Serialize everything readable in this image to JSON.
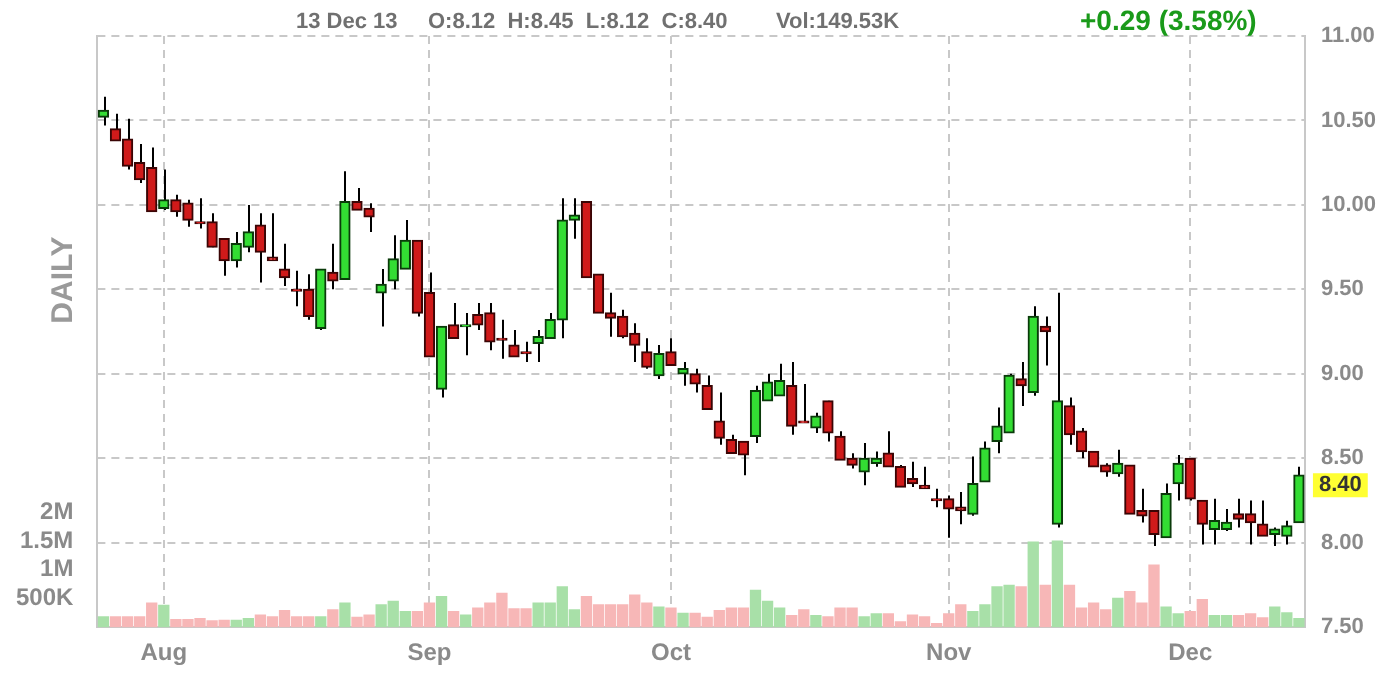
{
  "chart_data": {
    "type": "candlestick",
    "categories": [
      null,
      null,
      null,
      null,
      null,
      "Aug",
      null,
      null,
      null,
      null,
      null,
      null,
      null,
      null,
      null,
      null,
      null,
      null,
      null,
      null,
      null,
      null,
      null,
      null,
      null,
      null,
      null,
      "Sep",
      null,
      null,
      null,
      null,
      null,
      null,
      null,
      null,
      null,
      null,
      null,
      null,
      null,
      null,
      null,
      null,
      null,
      null,
      null,
      "Oct",
      null,
      null,
      null,
      null,
      null,
      null,
      null,
      null,
      null,
      null,
      null,
      null,
      null,
      null,
      null,
      null,
      null,
      null,
      null,
      null,
      null,
      null,
      "Nov",
      null,
      null,
      null,
      null,
      null,
      null,
      null,
      null,
      null,
      null,
      null,
      null,
      null,
      null,
      null,
      null,
      null,
      null,
      null,
      "Dec",
      null,
      null,
      null,
      null,
      null,
      null,
      null,
      null,
      null
    ],
    "ohlc": [
      [
        10.52,
        10.64,
        10.47,
        10.56
      ],
      [
        10.45,
        10.54,
        10.38,
        10.38
      ],
      [
        10.39,
        10.51,
        10.21,
        10.23
      ],
      [
        10.25,
        10.36,
        10.13,
        10.15
      ],
      [
        10.22,
        10.34,
        9.96,
        9.96
      ],
      [
        9.98,
        10.21,
        9.97,
        10.03
      ],
      [
        10.03,
        10.06,
        9.93,
        9.96
      ],
      [
        10.01,
        10.03,
        9.87,
        9.91
      ],
      [
        9.9,
        10.04,
        9.86,
        9.89
      ],
      [
        9.9,
        9.95,
        9.75,
        9.75
      ],
      [
        9.8,
        9.8,
        9.58,
        9.67
      ],
      [
        9.67,
        9.84,
        9.63,
        9.77
      ],
      [
        9.75,
        10.0,
        9.72,
        9.84
      ],
      [
        9.88,
        9.95,
        9.54,
        9.72
      ],
      [
        9.69,
        9.95,
        9.67,
        9.67
      ],
      [
        9.62,
        9.77,
        9.52,
        9.57
      ],
      [
        9.5,
        9.61,
        9.4,
        9.49
      ],
      [
        9.5,
        9.59,
        9.32,
        9.34
      ],
      [
        9.27,
        9.62,
        9.26,
        9.62
      ],
      [
        9.6,
        9.77,
        9.5,
        9.55
      ],
      [
        9.56,
        10.2,
        9.56,
        10.02
      ],
      [
        10.02,
        10.1,
        9.97,
        9.97
      ],
      [
        9.98,
        10.01,
        9.84,
        9.93
      ],
      [
        9.48,
        9.62,
        9.28,
        9.53
      ],
      [
        9.55,
        9.82,
        9.5,
        9.68
      ],
      [
        9.62,
        9.91,
        9.62,
        9.79
      ],
      [
        9.79,
        9.79,
        9.34,
        9.36
      ],
      [
        9.48,
        9.6,
        9.1,
        9.1
      ],
      [
        8.91,
        9.28,
        8.86,
        9.28
      ],
      [
        9.29,
        9.42,
        9.21,
        9.21
      ],
      [
        9.28,
        9.36,
        9.11,
        9.29
      ],
      [
        9.35,
        9.42,
        9.26,
        9.29
      ],
      [
        9.36,
        9.42,
        9.14,
        9.19
      ],
      [
        9.21,
        9.32,
        9.09,
        9.2
      ],
      [
        9.17,
        9.26,
        9.1,
        9.1
      ],
      [
        9.13,
        9.19,
        9.07,
        9.12
      ],
      [
        9.18,
        9.26,
        9.07,
        9.22
      ],
      [
        9.21,
        9.36,
        9.21,
        9.32
      ],
      [
        9.32,
        10.04,
        9.21,
        9.91
      ],
      [
        9.91,
        10.04,
        9.8,
        9.94
      ],
      [
        10.02,
        10.02,
        9.57,
        9.57
      ],
      [
        9.59,
        9.59,
        9.36,
        9.36
      ],
      [
        9.36,
        9.48,
        9.22,
        9.33
      ],
      [
        9.34,
        9.38,
        9.21,
        9.22
      ],
      [
        9.24,
        9.3,
        9.07,
        9.17
      ],
      [
        9.13,
        9.21,
        9.03,
        9.04
      ],
      [
        8.99,
        9.17,
        8.97,
        9.12
      ],
      [
        9.13,
        9.21,
        9.05,
        9.05
      ],
      [
        9.0,
        9.07,
        8.93,
        9.03
      ],
      [
        9.0,
        9.03,
        8.89,
        8.94
      ],
      [
        8.93,
        8.99,
        8.79,
        8.79
      ],
      [
        8.72,
        8.89,
        8.58,
        8.62
      ],
      [
        8.61,
        8.64,
        8.53,
        8.53
      ],
      [
        8.6,
        8.6,
        8.4,
        8.52
      ],
      [
        8.63,
        8.93,
        8.59,
        8.9
      ],
      [
        8.84,
        9.0,
        8.84,
        8.95
      ],
      [
        8.87,
        9.06,
        8.87,
        8.96
      ],
      [
        8.93,
        9.07,
        8.64,
        8.69
      ],
      [
        8.72,
        8.94,
        8.71,
        8.71
      ],
      [
        8.68,
        8.77,
        8.65,
        8.75
      ],
      [
        8.84,
        8.84,
        8.6,
        8.65
      ],
      [
        8.63,
        8.66,
        8.49,
        8.49
      ],
      [
        8.5,
        8.53,
        8.44,
        8.46
      ],
      [
        8.42,
        8.59,
        8.34,
        8.5
      ],
      [
        8.47,
        8.54,
        8.45,
        8.5
      ],
      [
        8.53,
        8.66,
        8.45,
        8.45
      ],
      [
        8.45,
        8.46,
        8.33,
        8.33
      ],
      [
        8.38,
        8.48,
        8.33,
        8.35
      ],
      [
        8.34,
        8.45,
        8.32,
        8.32
      ],
      [
        8.26,
        8.32,
        8.21,
        8.25
      ],
      [
        8.26,
        8.28,
        8.03,
        8.2
      ],
      [
        8.21,
        8.3,
        8.11,
        8.19
      ],
      [
        8.17,
        8.51,
        8.16,
        8.35
      ],
      [
        8.36,
        8.6,
        8.36,
        8.56
      ],
      [
        8.6,
        8.8,
        8.53,
        8.69
      ],
      [
        8.65,
        9.0,
        8.65,
        8.99
      ],
      [
        8.97,
        9.07,
        8.81,
        8.93
      ],
      [
        8.89,
        9.4,
        8.87,
        9.34
      ],
      [
        9.28,
        9.34,
        9.05,
        9.25
      ],
      [
        8.11,
        9.48,
        8.09,
        8.84
      ],
      [
        8.81,
        8.86,
        8.58,
        8.64
      ],
      [
        8.66,
        8.68,
        8.5,
        8.54
      ],
      [
        8.54,
        8.54,
        8.45,
        8.45
      ],
      [
        8.46,
        8.47,
        8.39,
        8.42
      ],
      [
        8.41,
        8.55,
        8.39,
        8.47
      ],
      [
        8.46,
        8.46,
        8.17,
        8.17
      ],
      [
        8.19,
        8.32,
        8.12,
        8.16
      ],
      [
        8.19,
        8.19,
        7.98,
        8.05
      ],
      [
        8.03,
        8.35,
        8.03,
        8.29
      ],
      [
        8.35,
        8.52,
        8.25,
        8.47
      ],
      [
        8.5,
        8.5,
        8.25,
        8.26
      ],
      [
        8.25,
        8.25,
        7.99,
        8.11
      ],
      [
        8.08,
        8.26,
        7.99,
        8.13
      ],
      [
        8.08,
        8.2,
        8.07,
        8.12
      ],
      [
        8.17,
        8.26,
        8.09,
        8.14
      ],
      [
        8.17,
        8.25,
        7.99,
        8.12
      ],
      [
        8.11,
        8.25,
        8.04,
        8.04
      ],
      [
        8.05,
        8.09,
        7.98,
        8.08
      ],
      [
        8.04,
        8.13,
        7.99,
        8.1
      ],
      [
        8.12,
        8.45,
        8.12,
        8.4
      ]
    ],
    "series": [
      {
        "type": "bar",
        "axis": "y2",
        "values": [
          180000,
          180000,
          180000,
          180000,
          420000,
          380000,
          130000,
          130000,
          150000,
          110000,
          120000,
          120000,
          150000,
          210000,
          180000,
          290000,
          180000,
          180000,
          180000,
          300000,
          420000,
          170000,
          210000,
          390000,
          450000,
          270000,
          270000,
          420000,
          530000,
          270000,
          210000,
          330000,
          420000,
          590000,
          320000,
          320000,
          420000,
          420000,
          700000,
          300000,
          530000,
          390000,
          390000,
          390000,
          560000,
          420000,
          350000,
          330000,
          240000,
          240000,
          170000,
          290000,
          330000,
          330000,
          640000,
          450000,
          330000,
          200000,
          300000,
          200000,
          180000,
          330000,
          330000,
          180000,
          230000,
          230000,
          90000,
          210000,
          180000,
          60000,
          230000,
          390000,
          270000,
          390000,
          700000,
          730000,
          700000,
          1480000,
          730000,
          1500000,
          730000,
          330000,
          420000,
          300000,
          500000,
          620000,
          420000,
          1080000,
          350000,
          230000,
          270000,
          480000,
          200000,
          200000,
          200000,
          230000,
          160000,
          350000,
          250000,
          150000
        ],
        "colors": [
          "#a8e0a8",
          "#f7b7b7",
          "#f7b7b7",
          "#f7b7b7",
          "#f7b7b7",
          "#a8e0a8",
          "#f7b7b7",
          "#f7b7b7",
          "#f7b7b7",
          "#f7b7b7",
          "#f7b7b7",
          "#a8e0a8",
          "#a8e0a8",
          "#f7b7b7",
          "#f7b7b7",
          "#f7b7b7",
          "#f7b7b7",
          "#f7b7b7",
          "#a8e0a8",
          "#f7b7b7",
          "#a8e0a8",
          "#f7b7b7",
          "#f7b7b7",
          "#a8e0a8",
          "#a8e0a8",
          "#a8e0a8",
          "#f7b7b7",
          "#f7b7b7",
          "#a8e0a8",
          "#f7b7b7",
          "#a8e0a8",
          "#f7b7b7",
          "#f7b7b7",
          "#f7b7b7",
          "#f7b7b7",
          "#f7b7b7",
          "#a8e0a8",
          "#a8e0a8",
          "#a8e0a8",
          "#a8e0a8",
          "#f7b7b7",
          "#f7b7b7",
          "#f7b7b7",
          "#f7b7b7",
          "#f7b7b7",
          "#f7b7b7",
          "#a8e0a8",
          "#f7b7b7",
          "#a8e0a8",
          "#f7b7b7",
          "#f7b7b7",
          "#f7b7b7",
          "#f7b7b7",
          "#f7b7b7",
          "#a8e0a8",
          "#a8e0a8",
          "#a8e0a8",
          "#f7b7b7",
          "#f7b7b7",
          "#a8e0a8",
          "#f7b7b7",
          "#f7b7b7",
          "#f7b7b7",
          "#a8e0a8",
          "#a8e0a8",
          "#f7b7b7",
          "#f7b7b7",
          "#f7b7b7",
          "#f7b7b7",
          "#f7b7b7",
          "#f7b7b7",
          "#f7b7b7",
          "#a8e0a8",
          "#a8e0a8",
          "#a8e0a8",
          "#a8e0a8",
          "#f7b7b7",
          "#a8e0a8",
          "#f7b7b7",
          "#a8e0a8",
          "#f7b7b7",
          "#f7b7b7",
          "#f7b7b7",
          "#f7b7b7",
          "#a8e0a8",
          "#f7b7b7",
          "#f7b7b7",
          "#f7b7b7",
          "#a8e0a8",
          "#a8e0a8",
          "#f7b7b7",
          "#f7b7b7",
          "#a8e0a8",
          "#a8e0a8",
          "#f7b7b7",
          "#f7b7b7",
          "#f7b7b7",
          "#a8e0a8",
          "#a8e0a8",
          "#a8e0a8"
        ]
      }
    ],
    "ylim": [
      7.5,
      11.0
    ],
    "yticks": [
      {
        "value": 7.5,
        "label": "7.50"
      },
      {
        "value": 8.0,
        "label": "8.00"
      },
      {
        "value": 8.5,
        "label": "8.50"
      },
      {
        "value": 9.0,
        "label": "9.00"
      },
      {
        "value": 9.5,
        "label": "9.50"
      },
      {
        "value": 10.0,
        "label": "10.00"
      },
      {
        "value": 10.5,
        "label": "10.50"
      },
      {
        "value": 11.0,
        "label": "11.00"
      }
    ],
    "y2lim": [
      0,
      10300000
    ],
    "y2ticks": [
      {
        "value": 500000,
        "label": "500K"
      },
      {
        "value": 1000000,
        "label": "1M"
      },
      {
        "value": 1500000,
        "label": "1.5M"
      },
      {
        "value": 2000000,
        "label": "2M"
      }
    ],
    "grid": true,
    "annotations": [
      "DAILY",
      "13 Dec 13",
      "O:8.12  H:8.45  L:8.12  C:8.40",
      "Vol:149.53K",
      "+0.29 (3.58%)",
      "8.40"
    ]
  }
}
